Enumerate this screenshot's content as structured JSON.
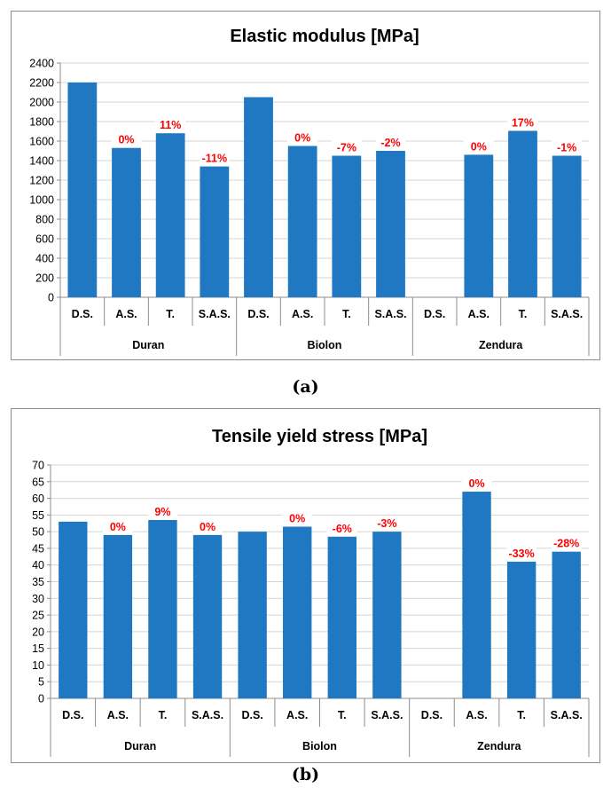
{
  "chart_data": [
    {
      "type": "bar",
      "title": "Elastic modulus [MPa]",
      "groups": [
        {
          "name": "Duran",
          "categories": [
            "D.S.",
            "A.S.",
            "T.",
            "S.A.S."
          ],
          "values": [
            2200,
            1530,
            1680,
            1340
          ],
          "labels": [
            "",
            "0%",
            "11%",
            "-11%"
          ]
        },
        {
          "name": "Biolon",
          "categories": [
            "D.S.",
            "A.S.",
            "T.",
            "S.A.S."
          ],
          "values": [
            2050,
            1550,
            1450,
            1500
          ],
          "labels": [
            "",
            "0%",
            "-7%",
            "-2%"
          ]
        },
        {
          "name": "Zendura",
          "categories": [
            "D.S.",
            "A.S.",
            "T.",
            "S.A.S."
          ],
          "values": [
            null,
            1460,
            1705,
            1450
          ],
          "labels": [
            "",
            "0%",
            "17%",
            "-1%"
          ]
        }
      ],
      "ylim": [
        0,
        2400
      ],
      "ytick_step": 200,
      "grid": true,
      "bar_color": "#1f78c1",
      "label_color": "#ff0000"
    },
    {
      "type": "bar",
      "title": "Tensile yield stress [MPa]",
      "groups": [
        {
          "name": "Duran",
          "categories": [
            "D.S.",
            "A.S.",
            "T.",
            "S.A.S."
          ],
          "values": [
            53,
            49,
            53.5,
            49
          ],
          "labels": [
            "",
            "0%",
            "9%",
            "0%"
          ]
        },
        {
          "name": "Biolon",
          "categories": [
            "D.S.",
            "A.S.",
            "T.",
            "S.A.S."
          ],
          "values": [
            50,
            51.5,
            48.5,
            50
          ],
          "labels": [
            "",
            "0%",
            "-6%",
            "-3%"
          ]
        },
        {
          "name": "Zendura",
          "categories": [
            "D.S.",
            "A.S.",
            "T.",
            "S.A.S."
          ],
          "values": [
            null,
            62,
            41,
            44
          ],
          "labels": [
            "",
            "0%",
            "-33%",
            "-28%"
          ]
        }
      ],
      "ylim": [
        0,
        70
      ],
      "ytick_step": 5,
      "grid": true,
      "bar_color": "#1f78c1",
      "label_color": "#ff0000"
    }
  ],
  "captions": {
    "a": "(a)",
    "b": "(b)"
  }
}
